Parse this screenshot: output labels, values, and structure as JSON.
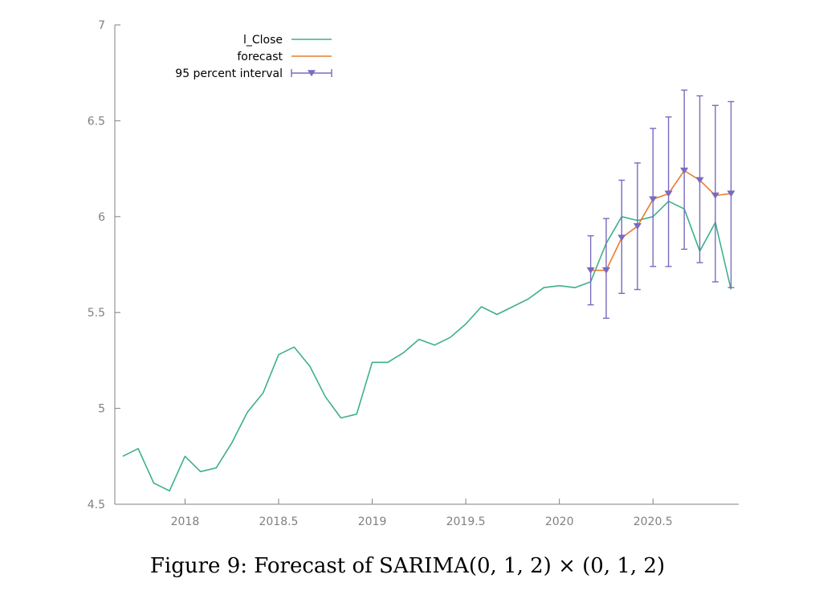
{
  "caption": "Figure 9: Forecast of SARIMA(0, 1, 2) × (0, 1, 2)",
  "chart_data": {
    "type": "line",
    "title": "",
    "xlabel": "",
    "ylabel": "",
    "xlim": [
      2017.625,
      2020.958
    ],
    "ylim": [
      4.5,
      7
    ],
    "xticks": [
      2018,
      2018.5,
      2019,
      2019.5,
      2020,
      2020.5
    ],
    "xtick_labels": [
      "2018",
      "2018.5",
      "2019",
      "2019.5",
      "2020",
      "2020.5"
    ],
    "yticks": [
      4.5,
      5,
      5.5,
      6,
      6.5,
      7
    ],
    "ytick_labels": [
      "4.5",
      "5",
      "5.5",
      "6",
      "6.5",
      "7"
    ],
    "grid": false,
    "legend_position": "top-left",
    "colors": {
      "actual": "#3cb08a",
      "forecast": "#e87d2f",
      "interval": "#7a6abf",
      "axis": "#808080"
    },
    "series": [
      {
        "name": "l_Close",
        "x": [
          2017.667,
          2017.75,
          2017.833,
          2017.917,
          2018.0,
          2018.083,
          2018.167,
          2018.25,
          2018.333,
          2018.417,
          2018.5,
          2018.583,
          2018.667,
          2018.75,
          2018.833,
          2018.917,
          2019.0,
          2019.083,
          2019.167,
          2019.25,
          2019.333,
          2019.417,
          2019.5,
          2019.583,
          2019.667,
          2019.75,
          2019.833,
          2019.917,
          2020.0,
          2020.083,
          2020.167,
          2020.25,
          2020.333,
          2020.417,
          2020.5,
          2020.583,
          2020.667,
          2020.75,
          2020.833,
          2020.917
        ],
        "y": [
          4.75,
          4.79,
          4.61,
          4.57,
          4.75,
          4.67,
          4.69,
          4.82,
          4.98,
          5.08,
          5.28,
          5.32,
          5.22,
          5.06,
          4.95,
          4.97,
          5.24,
          5.24,
          5.29,
          5.36,
          5.33,
          5.37,
          5.44,
          5.53,
          5.49,
          5.53,
          5.57,
          5.63,
          5.64,
          5.63,
          5.66,
          5.86,
          6.0,
          5.98,
          6.0,
          6.08,
          6.04,
          5.82,
          5.97,
          5.62
        ]
      },
      {
        "name": "forecast",
        "x": [
          2020.167,
          2020.25,
          2020.333,
          2020.417,
          2020.5,
          2020.583,
          2020.667,
          2020.75,
          2020.833,
          2020.917
        ],
        "y": [
          5.72,
          5.72,
          5.89,
          5.95,
          6.09,
          6.12,
          6.24,
          6.19,
          6.11,
          6.12
        ]
      },
      {
        "name": "95 percent interval",
        "x": [
          2020.167,
          2020.25,
          2020.333,
          2020.417,
          2020.5,
          2020.583,
          2020.667,
          2020.75,
          2020.833,
          2020.917
        ],
        "y": [
          5.72,
          5.72,
          5.89,
          5.95,
          6.09,
          6.12,
          6.24,
          6.19,
          6.11,
          6.12
        ],
        "lower": [
          5.54,
          5.47,
          5.6,
          5.62,
          5.74,
          5.74,
          5.83,
          5.76,
          5.66,
          5.63
        ],
        "upper": [
          5.9,
          5.99,
          6.19,
          6.28,
          6.46,
          6.52,
          6.66,
          6.63,
          6.58,
          6.6
        ]
      }
    ]
  }
}
